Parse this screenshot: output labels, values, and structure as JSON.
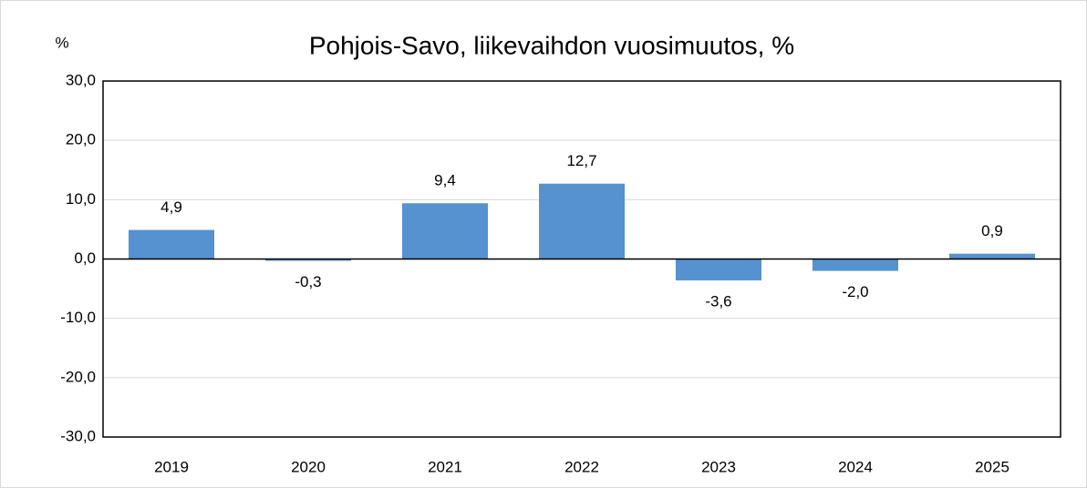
{
  "chart_data": {
    "type": "bar",
    "title": "Pohjois-Savo, liikevaihdon vuosimuutos, %",
    "y_label": "%",
    "categories": [
      "2019",
      "2020",
      "2021",
      "2022",
      "2023",
      "2024",
      "2025"
    ],
    "values": [
      4.9,
      -0.3,
      9.4,
      12.7,
      -3.6,
      -2.0,
      0.9
    ],
    "value_labels": [
      "4,9",
      "-0,3",
      "9,4",
      "12,7",
      "-3,6",
      "-2,0",
      "0,9"
    ],
    "color": "#5592cf",
    "ylim": [
      -30,
      30
    ],
    "yticks": [
      {
        "value": -30,
        "label": "-30,0"
      },
      {
        "value": -20,
        "label": "-20,0"
      },
      {
        "value": -10,
        "label": "-10,0"
      },
      {
        "value": 0,
        "label": "0,0"
      },
      {
        "value": 10,
        "label": "10,0"
      },
      {
        "value": 20,
        "label": "20,0"
      },
      {
        "value": 30,
        "label": "30,0"
      }
    ],
    "grid": true
  }
}
